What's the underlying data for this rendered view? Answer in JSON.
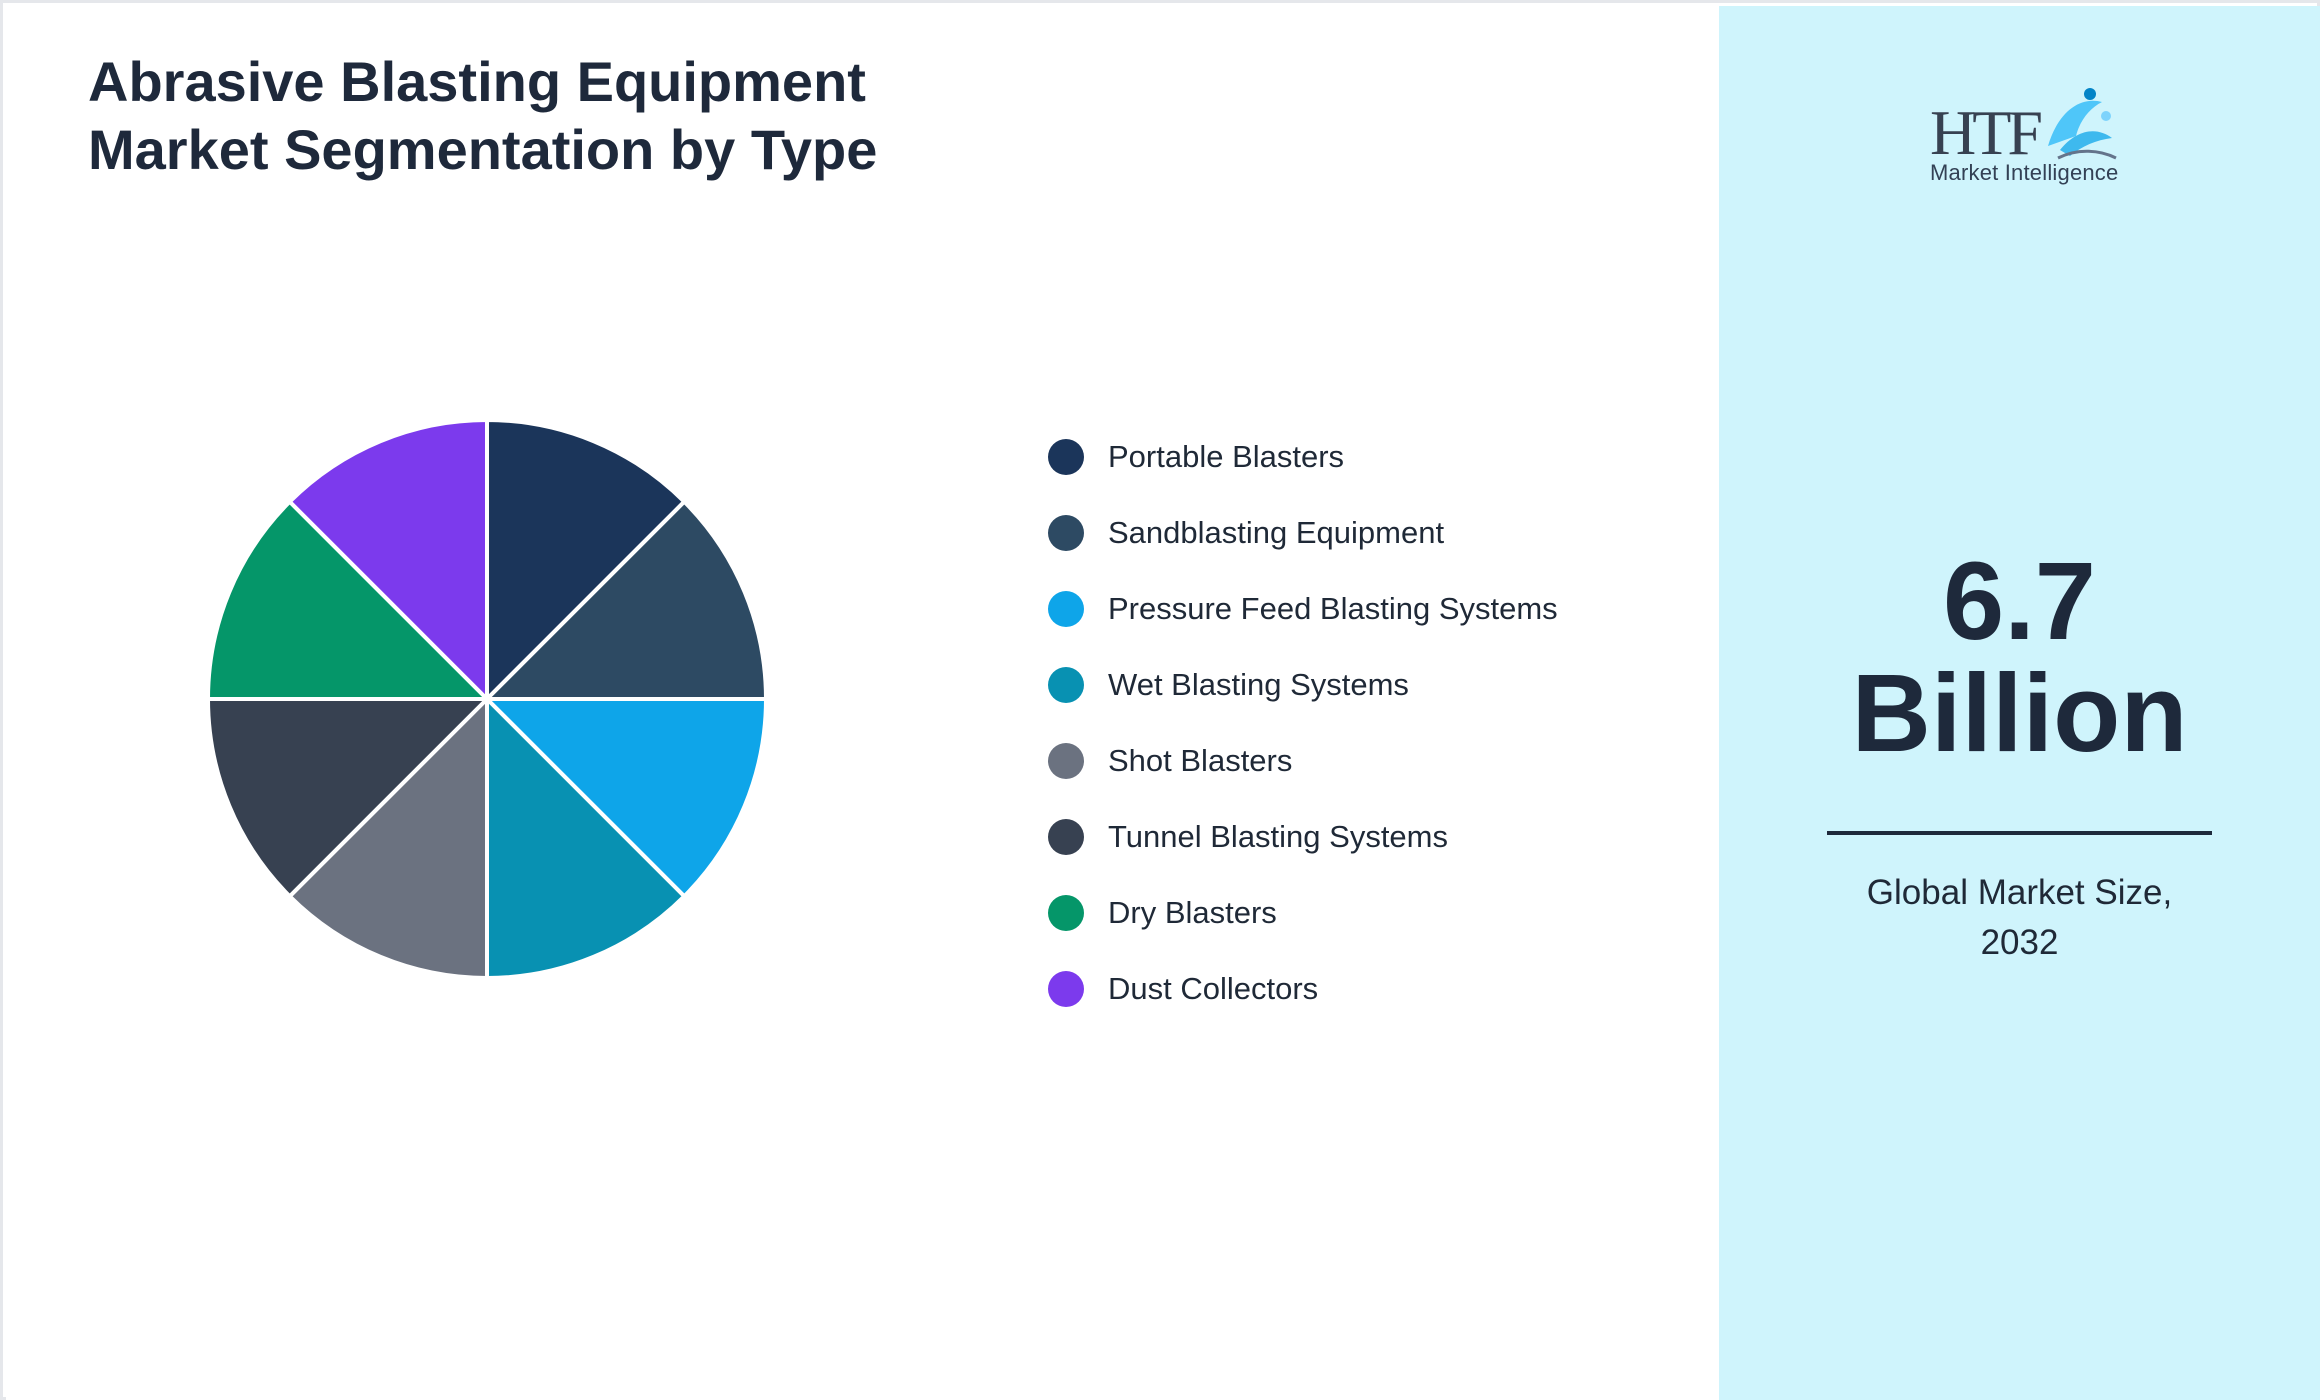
{
  "title": {
    "line1": "Abrasive Blasting Equipment",
    "line2": "Market Segmentation by Type"
  },
  "chart_data": {
    "type": "pie",
    "categories": [
      "Portable Blasters",
      "Sandblasting Equipment",
      "Pressure Feed Blasting Systems",
      "Wet Blasting Systems",
      "Shot Blasters",
      "Tunnel Blasting Systems",
      "Dry Blasters",
      "Dust Collectors"
    ],
    "values": [
      12.5,
      12.5,
      12.5,
      12.5,
      12.5,
      12.5,
      12.5,
      12.5
    ],
    "colors": [
      "#1b355a",
      "#2d4a63",
      "#0ea5e9",
      "#0891b2",
      "#6b7280",
      "#374151",
      "#059669",
      "#7c3aed"
    ],
    "legend_position": "right"
  },
  "logo": {
    "mark_text": "HTF",
    "tagline": "Market Intelligence"
  },
  "summary": {
    "value": "6.7",
    "unit": "Billion",
    "caption_line1": "Global Market Size,",
    "caption_line2": "2032"
  },
  "colors": {
    "panel_bg": "#cff4fc",
    "text_dark": "#1e293b"
  }
}
